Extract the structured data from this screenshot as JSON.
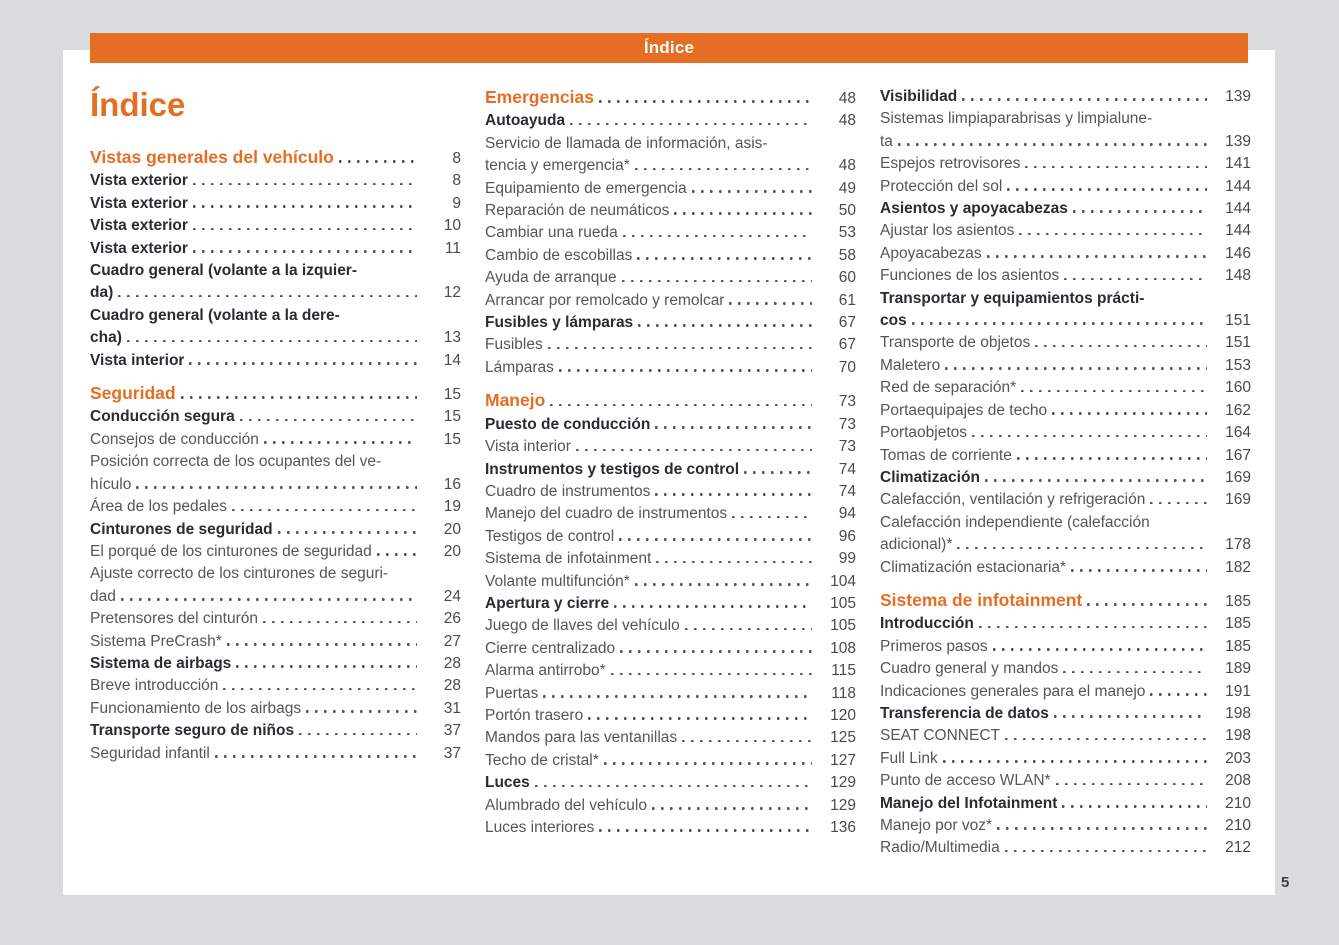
{
  "header": {
    "title": "Índice"
  },
  "page_title": "Índice",
  "page_number": "5",
  "colors": {
    "accent_orange": "#e66e23",
    "bold_text": "#2b2b31",
    "body_text": "#55555a",
    "page_bg": "#ffffff",
    "margin_bg": "#dadbdd"
  },
  "columns": [
    {
      "entries": [
        {
          "lines": [
            "Vistas generales del vehículo"
          ],
          "page": "8",
          "style": "chapter"
        },
        {
          "lines": [
            "Vista exterior"
          ],
          "page": "8",
          "style": "bold"
        },
        {
          "lines": [
            "Vista exterior"
          ],
          "page": "9",
          "style": "bold"
        },
        {
          "lines": [
            "Vista exterior"
          ],
          "page": "10",
          "style": "bold"
        },
        {
          "lines": [
            "Vista exterior"
          ],
          "page": "11",
          "style": "bold"
        },
        {
          "lines": [
            "Cuadro general (volante a la izquier-",
            "da)"
          ],
          "page": "12",
          "style": "bold"
        },
        {
          "lines": [
            "Cuadro general (volante a la dere-",
            "cha)"
          ],
          "page": "13",
          "style": "bold"
        },
        {
          "lines": [
            "Vista interior"
          ],
          "page": "14",
          "style": "bold"
        },
        {
          "lines": [
            "Seguridad"
          ],
          "page": "15",
          "style": "chapter",
          "gap": true
        },
        {
          "lines": [
            "Conducción segura"
          ],
          "page": "15",
          "style": "bold"
        },
        {
          "lines": [
            "Consejos de conducción"
          ],
          "page": "15",
          "style": "normal"
        },
        {
          "lines": [
            "Posición correcta de los ocupantes del ve-",
            "hículo"
          ],
          "page": "16",
          "style": "normal"
        },
        {
          "lines": [
            "Área de los pedales"
          ],
          "page": "19",
          "style": "normal"
        },
        {
          "lines": [
            "Cinturones de seguridad"
          ],
          "page": "20",
          "style": "bold"
        },
        {
          "lines": [
            "El porqué de los cinturones de seguridad"
          ],
          "page": "20",
          "style": "normal"
        },
        {
          "lines": [
            "Ajuste correcto de los cinturones de seguri-",
            "dad"
          ],
          "page": "24",
          "style": "normal"
        },
        {
          "lines": [
            "Pretensores del cinturón"
          ],
          "page": "26",
          "style": "normal"
        },
        {
          "lines": [
            "Sistema PreCrash*"
          ],
          "page": "27",
          "style": "normal"
        },
        {
          "lines": [
            "Sistema de airbags"
          ],
          "page": "28",
          "style": "bold"
        },
        {
          "lines": [
            "Breve introducción"
          ],
          "page": "28",
          "style": "normal"
        },
        {
          "lines": [
            "Funcionamiento de los airbags"
          ],
          "page": "31",
          "style": "normal"
        },
        {
          "lines": [
            "Transporte seguro de niños"
          ],
          "page": "37",
          "style": "bold"
        },
        {
          "lines": [
            "Seguridad infantil"
          ],
          "page": "37",
          "style": "normal"
        }
      ]
    },
    {
      "entries": [
        {
          "lines": [
            "Emergencias"
          ],
          "page": "48",
          "style": "chapter"
        },
        {
          "lines": [
            "Autoayuda"
          ],
          "page": "48",
          "style": "bold"
        },
        {
          "lines": [
            "Servicio de llamada de información, asis-",
            "tencia y emergencia*"
          ],
          "page": "48",
          "style": "normal"
        },
        {
          "lines": [
            "Equipamiento de emergencia"
          ],
          "page": "49",
          "style": "normal"
        },
        {
          "lines": [
            "Reparación de neumáticos"
          ],
          "page": "50",
          "style": "normal"
        },
        {
          "lines": [
            "Cambiar una rueda"
          ],
          "page": "53",
          "style": "normal"
        },
        {
          "lines": [
            "Cambio de escobillas"
          ],
          "page": "58",
          "style": "normal"
        },
        {
          "lines": [
            "Ayuda de arranque"
          ],
          "page": "60",
          "style": "normal"
        },
        {
          "lines": [
            "Arrancar por remolcado y remolcar"
          ],
          "page": "61",
          "style": "normal"
        },
        {
          "lines": [
            "Fusibles y lámparas"
          ],
          "page": "67",
          "style": "bold"
        },
        {
          "lines": [
            "Fusibles"
          ],
          "page": "67",
          "style": "normal"
        },
        {
          "lines": [
            "Lámparas"
          ],
          "page": "70",
          "style": "normal"
        },
        {
          "lines": [
            "Manejo"
          ],
          "page": "73",
          "style": "chapter",
          "gap": true
        },
        {
          "lines": [
            "Puesto de conducción"
          ],
          "page": "73",
          "style": "bold"
        },
        {
          "lines": [
            "Vista interior"
          ],
          "page": "73",
          "style": "normal"
        },
        {
          "lines": [
            "Instrumentos y testigos de control"
          ],
          "page": "74",
          "style": "bold"
        },
        {
          "lines": [
            "Cuadro de instrumentos"
          ],
          "page": "74",
          "style": "normal"
        },
        {
          "lines": [
            "Manejo del cuadro de instrumentos"
          ],
          "page": "94",
          "style": "normal"
        },
        {
          "lines": [
            "Testigos de control"
          ],
          "page": "96",
          "style": "normal"
        },
        {
          "lines": [
            "Sistema de infotainment"
          ],
          "page": "99",
          "style": "normal"
        },
        {
          "lines": [
            "Volante multifunción*"
          ],
          "page": "104",
          "style": "normal"
        },
        {
          "lines": [
            "Apertura y cierre"
          ],
          "page": "105",
          "style": "bold"
        },
        {
          "lines": [
            "Juego de llaves del vehículo"
          ],
          "page": "105",
          "style": "normal"
        },
        {
          "lines": [
            "Cierre centralizado"
          ],
          "page": "108",
          "style": "normal"
        },
        {
          "lines": [
            "Alarma antirrobo*"
          ],
          "page": "115",
          "style": "normal"
        },
        {
          "lines": [
            "Puertas"
          ],
          "page": "118",
          "style": "normal"
        },
        {
          "lines": [
            "Portón trasero"
          ],
          "page": "120",
          "style": "normal"
        },
        {
          "lines": [
            "Mandos para las ventanillas"
          ],
          "page": "125",
          "style": "normal"
        },
        {
          "lines": [
            "Techo de cristal*"
          ],
          "page": "127",
          "style": "normal"
        },
        {
          "lines": [
            "Luces"
          ],
          "page": "129",
          "style": "bold"
        },
        {
          "lines": [
            "Alumbrado del vehículo"
          ],
          "page": "129",
          "style": "normal"
        },
        {
          "lines": [
            "Luces interiores"
          ],
          "page": "136",
          "style": "normal"
        }
      ]
    },
    {
      "entries": [
        {
          "lines": [
            "Visibilidad"
          ],
          "page": "139",
          "style": "bold"
        },
        {
          "lines": [
            "Sistemas limpiaparabrisas y limpialune-",
            "ta"
          ],
          "page": "139",
          "style": "normal"
        },
        {
          "lines": [
            "Espejos retrovisores"
          ],
          "page": "141",
          "style": "normal"
        },
        {
          "lines": [
            "Protección del sol"
          ],
          "page": "144",
          "style": "normal"
        },
        {
          "lines": [
            "Asientos y apoyacabezas"
          ],
          "page": "144",
          "style": "bold"
        },
        {
          "lines": [
            "Ajustar los asientos"
          ],
          "page": "144",
          "style": "normal"
        },
        {
          "lines": [
            "Apoyacabezas"
          ],
          "page": "146",
          "style": "normal"
        },
        {
          "lines": [
            "Funciones de los asientos"
          ],
          "page": "148",
          "style": "normal"
        },
        {
          "lines": [
            "Transportar y equipamientos prácti-",
            "cos"
          ],
          "page": "151",
          "style": "bold"
        },
        {
          "lines": [
            "Transporte de objetos"
          ],
          "page": "151",
          "style": "normal"
        },
        {
          "lines": [
            "Maletero"
          ],
          "page": "153",
          "style": "normal"
        },
        {
          "lines": [
            "Red de separación*"
          ],
          "page": "160",
          "style": "normal"
        },
        {
          "lines": [
            "Portaequipajes de techo"
          ],
          "page": "162",
          "style": "normal"
        },
        {
          "lines": [
            "Portaobjetos"
          ],
          "page": "164",
          "style": "normal"
        },
        {
          "lines": [
            "Tomas de corriente"
          ],
          "page": "167",
          "style": "normal"
        },
        {
          "lines": [
            "Climatización"
          ],
          "page": "169",
          "style": "bold"
        },
        {
          "lines": [
            "Calefacción, ventilación y refrigeración"
          ],
          "page": "169",
          "style": "normal"
        },
        {
          "lines": [
            "Calefacción independiente (calefacción",
            "adicional)*"
          ],
          "page": "178",
          "style": "normal"
        },
        {
          "lines": [
            "Climatización estacionaria*"
          ],
          "page": "182",
          "style": "normal"
        },
        {
          "lines": [
            "Sistema de infotainment"
          ],
          "page": "185",
          "style": "chapter",
          "gap": true
        },
        {
          "lines": [
            "Introducción"
          ],
          "page": "185",
          "style": "bold"
        },
        {
          "lines": [
            "Primeros pasos"
          ],
          "page": "185",
          "style": "normal"
        },
        {
          "lines": [
            "Cuadro general y mandos"
          ],
          "page": "189",
          "style": "normal"
        },
        {
          "lines": [
            "Indicaciones generales para el manejo"
          ],
          "page": "191",
          "style": "normal"
        },
        {
          "lines": [
            "Transferencia de datos"
          ],
          "page": "198",
          "style": "bold"
        },
        {
          "lines": [
            "SEAT CONNECT"
          ],
          "page": "198",
          "style": "normal"
        },
        {
          "lines": [
            "Full Link"
          ],
          "page": "203",
          "style": "normal"
        },
        {
          "lines": [
            "Punto de acceso WLAN*"
          ],
          "page": "208",
          "style": "normal"
        },
        {
          "lines": [
            "Manejo del Infotainment"
          ],
          "page": "210",
          "style": "bold"
        },
        {
          "lines": [
            "Manejo por voz*"
          ],
          "page": "210",
          "style": "normal"
        },
        {
          "lines": [
            "Radio/Multimedia"
          ],
          "page": "212",
          "style": "normal"
        }
      ]
    }
  ]
}
